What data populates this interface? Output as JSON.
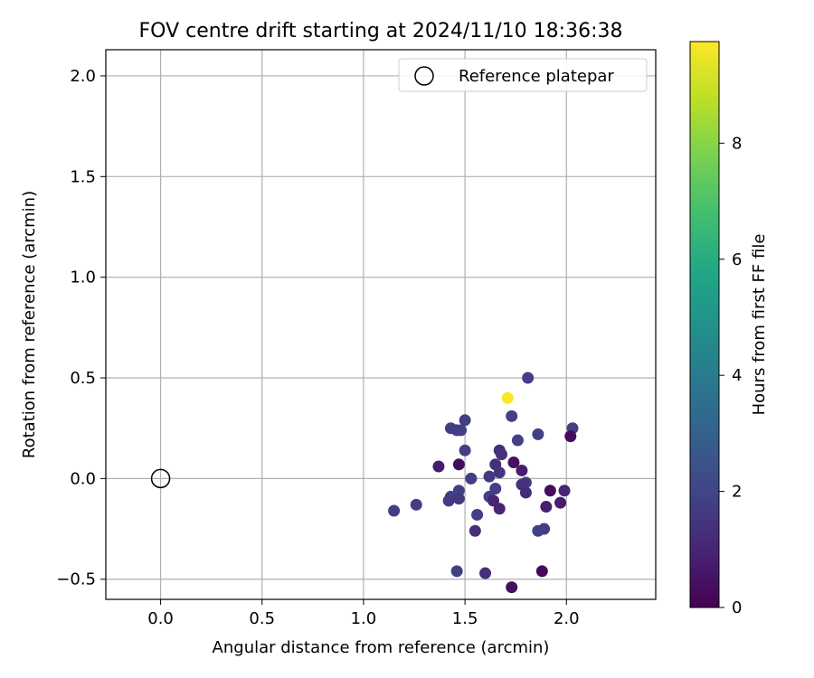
{
  "chart_data": {
    "type": "scatter",
    "title": "FOV centre drift starting at 2024/11/10 18:36:38",
    "xlabel": "Angular distance from reference (arcmin)",
    "ylabel": "Rotation from reference (arcmin)",
    "xlim": [
      -0.27,
      2.44
    ],
    "ylim": [
      -0.6,
      2.13
    ],
    "xticks": [
      0.0,
      0.5,
      1.0,
      1.5,
      2.0
    ],
    "xtick_labels": [
      "0.0",
      "0.5",
      "1.0",
      "1.5",
      "2.0"
    ],
    "yticks": [
      -0.5,
      0.0,
      0.5,
      1.0,
      1.5,
      2.0
    ],
    "ytick_labels": [
      "−0.5",
      "0.0",
      "0.5",
      "1.0",
      "1.5",
      "2.0"
    ],
    "grid": true,
    "legend": {
      "placement": "top-right",
      "entries": [
        {
          "label": "Reference platepar",
          "marker": "open-circle"
        }
      ]
    },
    "reference_point": {
      "x": 0.0,
      "y": 0.0
    },
    "colorbar": {
      "label": "Hours from first FF file",
      "colormap": "viridis",
      "range": [
        0,
        9.75
      ],
      "ticks": [
        0,
        2,
        4,
        6,
        8
      ],
      "tick_labels": [
        "0",
        "2",
        "4",
        "6",
        "8"
      ]
    },
    "points": [
      {
        "x": 1.71,
        "y": 0.4,
        "t": 9.7
      },
      {
        "x": 1.81,
        "y": 0.5,
        "t": 1.8
      },
      {
        "x": 1.73,
        "y": 0.31,
        "t": 1.8
      },
      {
        "x": 1.5,
        "y": 0.29,
        "t": 1.8
      },
      {
        "x": 1.43,
        "y": 0.25,
        "t": 1.8
      },
      {
        "x": 1.46,
        "y": 0.24,
        "t": 1.8
      },
      {
        "x": 1.48,
        "y": 0.24,
        "t": 1.8
      },
      {
        "x": 2.03,
        "y": 0.25,
        "t": 1.8
      },
      {
        "x": 2.02,
        "y": 0.21,
        "t": 0.3
      },
      {
        "x": 1.86,
        "y": 0.22,
        "t": 1.8
      },
      {
        "x": 1.76,
        "y": 0.19,
        "t": 1.8
      },
      {
        "x": 1.5,
        "y": 0.14,
        "t": 1.8
      },
      {
        "x": 1.67,
        "y": 0.14,
        "t": 1.2
      },
      {
        "x": 1.68,
        "y": 0.12,
        "t": 1.4
      },
      {
        "x": 1.47,
        "y": 0.07,
        "t": 0.3
      },
      {
        "x": 1.37,
        "y": 0.06,
        "t": 0.8
      },
      {
        "x": 1.65,
        "y": 0.07,
        "t": 1.3
      },
      {
        "x": 1.74,
        "y": 0.08,
        "t": 0.4
      },
      {
        "x": 1.78,
        "y": 0.04,
        "t": 0.8
      },
      {
        "x": 1.67,
        "y": 0.03,
        "t": 1.5
      },
      {
        "x": 1.62,
        "y": 0.01,
        "t": 1.6
      },
      {
        "x": 1.53,
        "y": 0.0,
        "t": 1.8
      },
      {
        "x": 1.8,
        "y": -0.02,
        "t": 1.6
      },
      {
        "x": 1.78,
        "y": -0.03,
        "t": 1.4
      },
      {
        "x": 1.65,
        "y": -0.05,
        "t": 1.8
      },
      {
        "x": 1.8,
        "y": -0.07,
        "t": 1.2
      },
      {
        "x": 1.92,
        "y": -0.06,
        "t": 0.3
      },
      {
        "x": 1.99,
        "y": -0.06,
        "t": 1.0
      },
      {
        "x": 1.47,
        "y": -0.06,
        "t": 1.8
      },
      {
        "x": 1.43,
        "y": -0.09,
        "t": 1.8
      },
      {
        "x": 1.47,
        "y": -0.1,
        "t": 1.6
      },
      {
        "x": 1.42,
        "y": -0.11,
        "t": 1.7
      },
      {
        "x": 1.62,
        "y": -0.09,
        "t": 1.8
      },
      {
        "x": 1.64,
        "y": -0.11,
        "t": 1.0
      },
      {
        "x": 1.97,
        "y": -0.12,
        "t": 0.8
      },
      {
        "x": 1.9,
        "y": -0.14,
        "t": 0.8
      },
      {
        "x": 1.67,
        "y": -0.15,
        "t": 1.0
      },
      {
        "x": 1.26,
        "y": -0.13,
        "t": 1.8
      },
      {
        "x": 1.15,
        "y": -0.16,
        "t": 1.8
      },
      {
        "x": 1.56,
        "y": -0.18,
        "t": 1.8
      },
      {
        "x": 1.55,
        "y": -0.26,
        "t": 1.3
      },
      {
        "x": 1.86,
        "y": -0.26,
        "t": 1.8
      },
      {
        "x": 1.89,
        "y": -0.25,
        "t": 1.8
      },
      {
        "x": 1.46,
        "y": -0.46,
        "t": 1.8
      },
      {
        "x": 1.6,
        "y": -0.47,
        "t": 1.3
      },
      {
        "x": 1.88,
        "y": -0.46,
        "t": 0.2
      },
      {
        "x": 1.73,
        "y": -0.54,
        "t": 0.4
      }
    ]
  }
}
